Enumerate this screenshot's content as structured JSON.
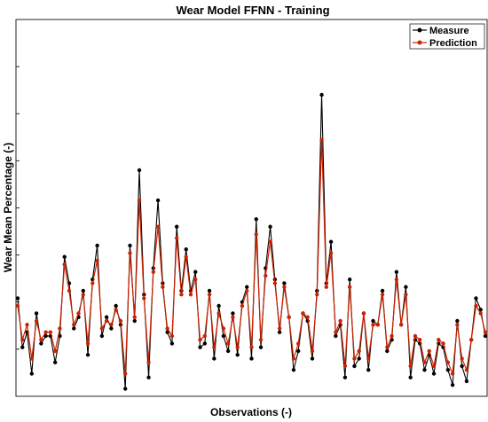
{
  "chart_data": {
    "type": "line",
    "title": "Wear Model FFNN - Training",
    "xlabel": "Observations (-)",
    "ylabel": "Wear Mean Percentage (-)",
    "xticks": [],
    "yticks": [],
    "grid": false,
    "legend_position": "top-right",
    "xlim": [
      0,
      100
    ],
    "ylim": [
      0,
      100
    ],
    "series": [
      {
        "name": "Measure",
        "color": "#000000",
        "marker": "circle",
        "x": [
          0,
          1,
          2,
          3,
          4,
          5,
          6,
          7,
          8,
          9,
          10,
          11,
          12,
          13,
          14,
          15,
          16,
          17,
          18,
          19,
          20,
          21,
          22,
          23,
          24,
          25,
          26,
          27,
          28,
          29,
          30,
          31,
          32,
          33,
          34,
          35,
          36,
          37,
          38,
          39,
          40,
          41,
          42,
          43,
          44,
          45,
          46,
          47,
          48,
          49,
          50,
          51,
          52,
          53,
          54,
          55,
          56,
          57,
          58,
          59,
          60,
          61,
          62,
          63,
          64,
          65,
          66,
          67,
          68,
          69,
          70,
          71,
          72,
          73,
          74,
          75,
          76,
          77,
          78,
          79,
          80,
          81,
          82,
          83,
          84,
          85,
          86,
          87,
          88,
          89,
          90,
          91,
          92,
          93,
          94,
          95,
          96,
          97,
          98,
          99,
          100
        ],
        "values": [
          26,
          13,
          17,
          6,
          22,
          14,
          16,
          16,
          9,
          16,
          37,
          30,
          18,
          21,
          28,
          11,
          31,
          40,
          16,
          21,
          18,
          24,
          19,
          2,
          40,
          20,
          60,
          27,
          5,
          34,
          52,
          30,
          17,
          14,
          45,
          28,
          39,
          28,
          33,
          13,
          14,
          28,
          10,
          24,
          16,
          12,
          22,
          11,
          25,
          29,
          10,
          47,
          13,
          34,
          45,
          31,
          17,
          30,
          21,
          7,
          12,
          22,
          20,
          10,
          28,
          80,
          30,
          41,
          16,
          19,
          5,
          31,
          8,
          10,
          22,
          7,
          20,
          19,
          28,
          12,
          15,
          33,
          19,
          29,
          5,
          15,
          14,
          7,
          11,
          6,
          14,
          13,
          7,
          3,
          20,
          8,
          4,
          15,
          26,
          23,
          16
        ]
      },
      {
        "name": "Prediction",
        "color": "#cc2200",
        "marker": "circle",
        "x": [
          0,
          1,
          2,
          3,
          4,
          5,
          6,
          7,
          8,
          9,
          10,
          11,
          12,
          13,
          14,
          15,
          16,
          17,
          18,
          19,
          20,
          21,
          22,
          23,
          24,
          25,
          26,
          27,
          28,
          29,
          30,
          31,
          32,
          33,
          34,
          35,
          36,
          37,
          38,
          39,
          40,
          41,
          42,
          43,
          44,
          45,
          46,
          47,
          48,
          49,
          50,
          51,
          52,
          53,
          54,
          55,
          56,
          57,
          58,
          59,
          60,
          61,
          62,
          63,
          64,
          65,
          66,
          67,
          68,
          69,
          70,
          71,
          72,
          73,
          74,
          75,
          76,
          77,
          78,
          79,
          80,
          81,
          82,
          83,
          84,
          85,
          86,
          87,
          88,
          89,
          90,
          91,
          92,
          93,
          94,
          95,
          96,
          97,
          98,
          99,
          100
        ],
        "values": [
          24,
          15,
          19,
          10,
          20,
          15,
          17,
          17,
          12,
          18,
          35,
          28,
          19,
          22,
          27,
          14,
          30,
          36,
          18,
          20,
          19,
          23,
          20,
          6,
          38,
          21,
          52,
          26,
          9,
          33,
          45,
          29,
          18,
          16,
          42,
          27,
          37,
          27,
          31,
          15,
          16,
          27,
          13,
          22,
          18,
          14,
          21,
          13,
          24,
          28,
          13,
          43,
          15,
          32,
          41,
          30,
          18,
          29,
          21,
          10,
          14,
          22,
          21,
          12,
          27,
          68,
          29,
          38,
          17,
          20,
          8,
          29,
          10,
          12,
          22,
          10,
          19,
          19,
          27,
          13,
          16,
          31,
          19,
          27,
          8,
          16,
          15,
          9,
          12,
          8,
          15,
          14,
          9,
          6,
          19,
          10,
          7,
          15,
          24,
          22,
          17
        ]
      }
    ]
  }
}
